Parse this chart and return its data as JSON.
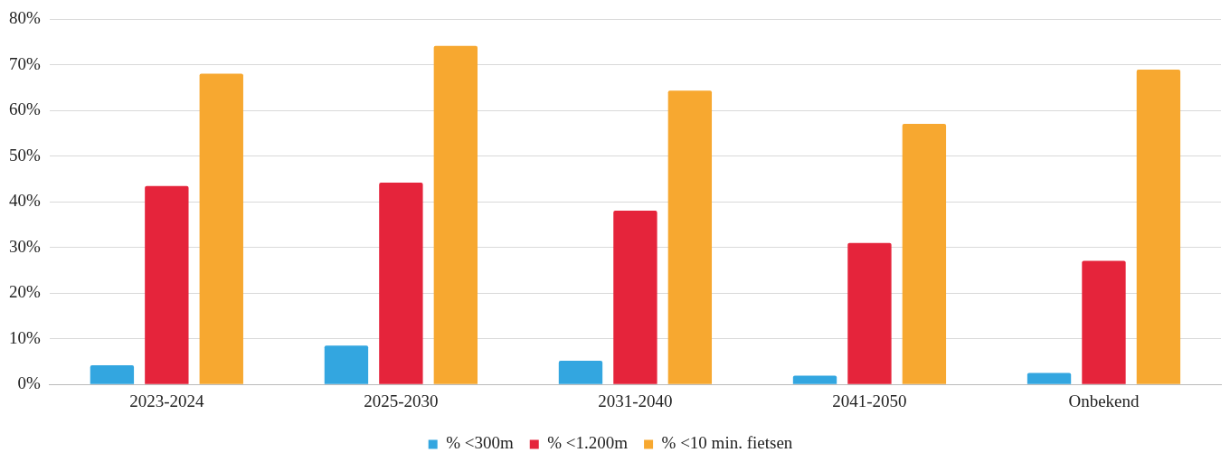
{
  "chart_data": {
    "type": "bar",
    "categories": [
      "2023-2024",
      "2025-2030",
      "2031-2040",
      "2041-2050",
      "Onbekend"
    ],
    "series": [
      {
        "name": "% <300m",
        "color": "#33a6e0",
        "values": [
          4.2,
          8.5,
          5.2,
          1.9,
          2.5
        ]
      },
      {
        "name": "% <1.200m",
        "color": "#e5243b",
        "values": [
          43.5,
          44.2,
          38.1,
          31.0,
          27.1
        ]
      },
      {
        "name": "% <10 min. fietsen",
        "color": "#f7a830",
        "values": [
          68.1,
          74.2,
          64.4,
          57.1,
          69.0
        ]
      }
    ],
    "ylim": [
      0,
      80
    ],
    "yticks": [
      {
        "value": 0,
        "label": "0%"
      },
      {
        "value": 10,
        "label": "10%"
      },
      {
        "value": 20,
        "label": "20%"
      },
      {
        "value": 30,
        "label": "30%"
      },
      {
        "value": 40,
        "label": "40%"
      },
      {
        "value": 50,
        "label": "50%"
      },
      {
        "value": 60,
        "label": "60%"
      },
      {
        "value": 70,
        "label": "70%"
      },
      {
        "value": 80,
        "label": "80%"
      }
    ],
    "grid": "y",
    "legend": "bottom"
  }
}
